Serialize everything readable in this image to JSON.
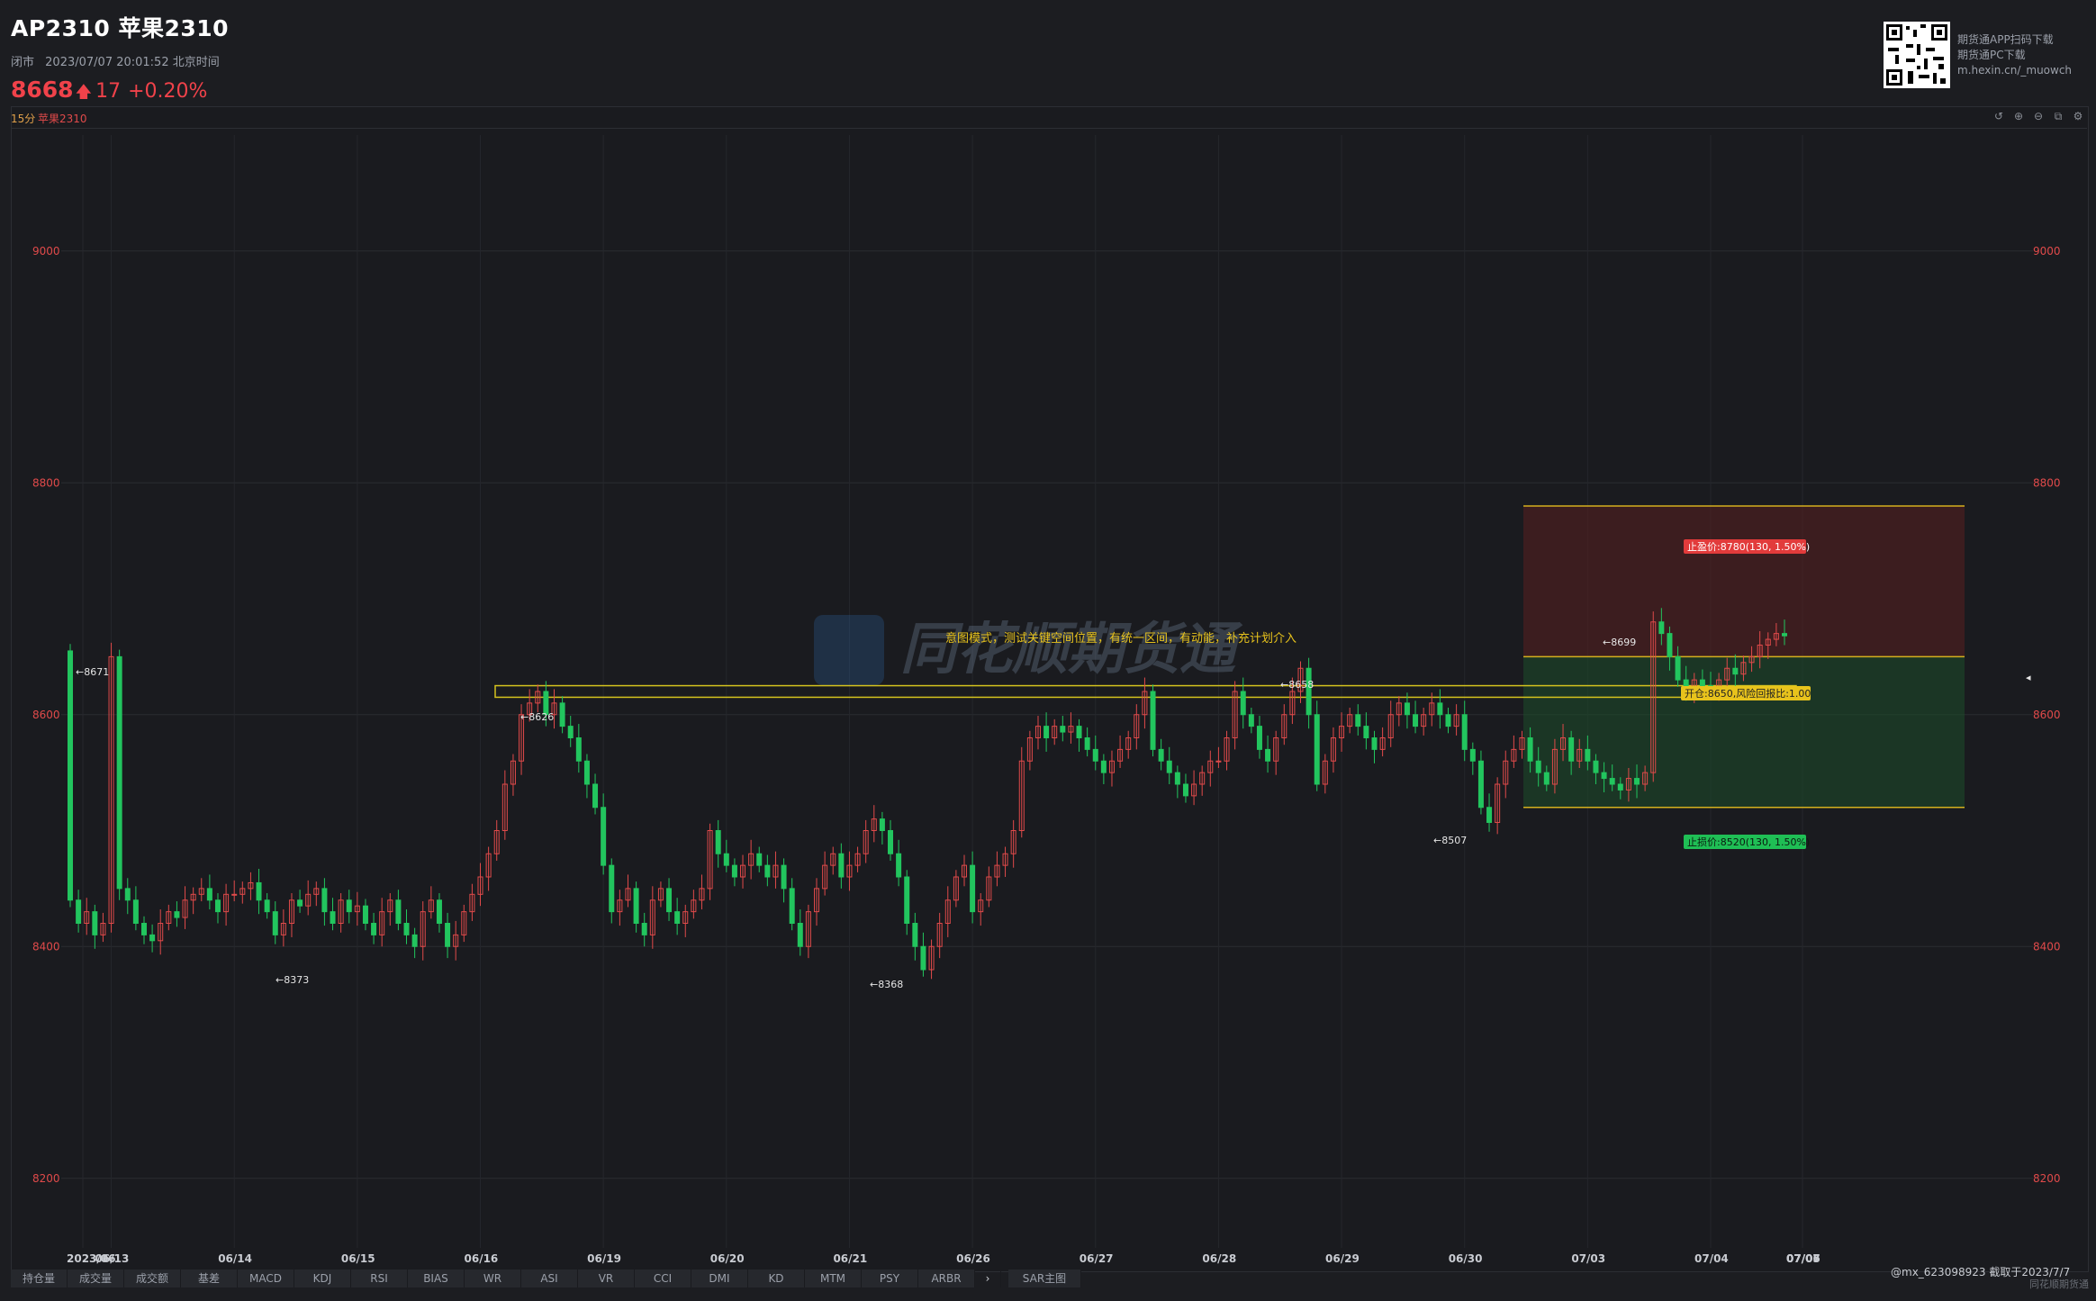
{
  "header": {
    "title": "AP2310 苹果2310",
    "status": "闭市",
    "datetime": "2023/07/07 20:01:52 北京时间",
    "price": "8668",
    "change": "17",
    "change_pct": "+0.20%"
  },
  "qr": {
    "line1": "期货通APP扫码下载",
    "line2": "期货通PC下载",
    "line3": "m.hexin.cn/_muowch"
  },
  "panel": {
    "timeframe": "15分",
    "symbol": "苹果2310",
    "tools": [
      "undo-icon",
      "zoom-in-icon",
      "zoom-out-icon",
      "screenshot-icon",
      "settings-icon"
    ]
  },
  "chart_data": {
    "type": "candlestick",
    "ylim": [
      8140,
      9100
    ],
    "yticks": [
      8200,
      8400,
      8600,
      8800,
      9000
    ],
    "x_ticks": [
      "2023/06",
      "06/13",
      "06/14",
      "06/15",
      "06/16",
      "06/19",
      "06/20",
      "06/21",
      "06/26",
      "06/27",
      "06/28",
      "06/29",
      "06/30",
      "07/03",
      "07/04",
      "07/05",
      "07/06",
      "07/07"
    ],
    "bars_per_session": 15,
    "session_closes": [
      [
        8440,
        8420,
        8430,
        8410,
        8420
      ],
      [
        8650,
        8450,
        8440,
        8420,
        8410,
        8405,
        8420,
        8430,
        8425,
        8440,
        8445,
        8450,
        8440,
        8430,
        8445
      ],
      [
        8445,
        8450,
        8455,
        8440,
        8430,
        8410,
        8420,
        8440,
        8435,
        8445,
        8450,
        8430,
        8420,
        8440,
        8430
      ],
      [
        8435,
        8420,
        8410,
        8430,
        8440,
        8420,
        8410,
        8400,
        8430,
        8440,
        8420,
        8400,
        8410,
        8430,
        8445
      ],
      [
        8460,
        8480,
        8500,
        8540,
        8560,
        8600,
        8610,
        8620,
        8600,
        8610,
        8590,
        8580,
        8560,
        8540,
        8520
      ],
      [
        8470,
        8430,
        8440,
        8450,
        8420,
        8410,
        8440,
        8450,
        8430,
        8420,
        8430,
        8440,
        8450,
        8500,
        8480
      ],
      [
        8470,
        8460,
        8470,
        8480,
        8470,
        8460,
        8470,
        8450,
        8420,
        8400,
        8430,
        8450,
        8470,
        8480,
        8460
      ],
      [
        8470,
        8480,
        8500,
        8510,
        8500,
        8480,
        8460,
        8420,
        8400,
        8380,
        8400,
        8420,
        8440,
        8460,
        8470
      ],
      [
        8430,
        8440,
        8460,
        8470,
        8480,
        8500,
        8560,
        8580,
        8590,
        8580,
        8590,
        8585,
        8590,
        8580,
        8570
      ],
      [
        8560,
        8550,
        8560,
        8570,
        8580,
        8600,
        8620,
        8570,
        8560,
        8550,
        8540,
        8530,
        8540,
        8550,
        8560
      ],
      [
        8560,
        8580,
        8620,
        8600,
        8590,
        8570,
        8560,
        8580,
        8600,
        8620,
        8640,
        8600,
        8540,
        8560,
        8580
      ],
      [
        8590,
        8600,
        8590,
        8580,
        8570,
        8580,
        8600,
        8610,
        8600,
        8590,
        8600,
        8610,
        8600,
        8590,
        8600
      ],
      [
        8570,
        8560,
        8520,
        8507,
        8540,
        8560,
        8570,
        8580,
        8560,
        8550,
        8540,
        8570,
        8580,
        8560,
        8570
      ],
      [
        8560,
        8550,
        8545,
        8540,
        8535,
        8545,
        8540,
        8550,
        8680,
        8670,
        8650,
        8630,
        8620,
        8630,
        8625
      ],
      [
        8620,
        8630,
        8640,
        8635,
        8645,
        8650,
        8660,
        8665,
        8670,
        8668
      ]
    ],
    "annotations": [
      {
        "label": "←8671",
        "type": "high"
      },
      {
        "label": "←8373",
        "type": "low"
      },
      {
        "label": "←8626",
        "type": "high"
      },
      {
        "label": "←8368",
        "type": "low"
      },
      {
        "label": "←8658",
        "type": "high"
      },
      {
        "label": "←8507",
        "type": "low"
      },
      {
        "label": "←8699",
        "type": "high"
      }
    ],
    "zone": {
      "low": 8615,
      "high": 8625
    },
    "trade_plan": {
      "entry": 8650,
      "take_profit": 8780,
      "stop_loss": 8520,
      "take_profit_label": "止盈价:8780(130, 1.50%)",
      "entry_label": "开仓:8650,风险回报比:1.00",
      "stop_loss_label": "止损价:8520(130, 1.50%)"
    },
    "note": "意图模式，测试关键空间位置，有统一区间，有动能，补充计划介入",
    "watermark": "同花顺期货通",
    "up_color": "#e04a4a",
    "down_color": "#22c55e"
  },
  "tabs": [
    "持仓量",
    "成交量",
    "成交额",
    "基差",
    "MACD",
    "KDJ",
    "RSI",
    "BIAS",
    "WR",
    "ASI",
    "VR",
    "CCI",
    "DMI",
    "KD",
    "MTM",
    "PSY",
    "ARBR"
  ],
  "tab_more": "›",
  "tab_sar": "SAR主图",
  "footer": {
    "user": "@mx_623098923  截取于2023/7/7",
    "brand": "同花顺期货通"
  }
}
